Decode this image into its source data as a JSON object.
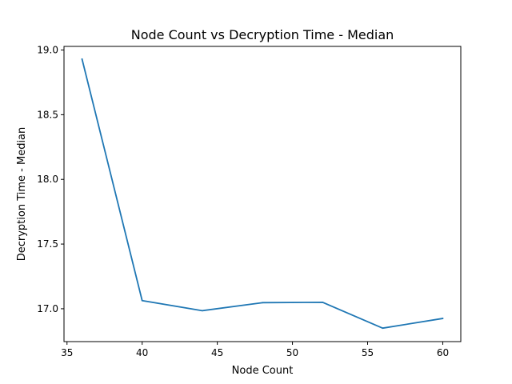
{
  "chart_data": {
    "type": "line",
    "title": "Node Count vs Decryption Time - Median",
    "xlabel": "Node Count",
    "ylabel": "Decryption Time - Median",
    "xlim": [
      34.8,
      61.2
    ],
    "ylim": [
      16.746,
      19.028
    ],
    "xticks": [
      35,
      40,
      45,
      50,
      55,
      60
    ],
    "xtick_labels": [
      "35",
      "40",
      "45",
      "50",
      "55",
      "60"
    ],
    "yticks": [
      17.0,
      17.5,
      18.0,
      18.5,
      19.0
    ],
    "ytick_labels": [
      "17.0",
      "17.5",
      "18.0",
      "18.5",
      "19.0"
    ],
    "grid": false,
    "series": [
      {
        "color": "#1f77b4",
        "x": [
          36,
          40,
          44,
          48,
          52,
          56,
          60
        ],
        "y": [
          18.93,
          17.063,
          16.985,
          17.047,
          17.05,
          16.85,
          16.925
        ]
      }
    ]
  }
}
